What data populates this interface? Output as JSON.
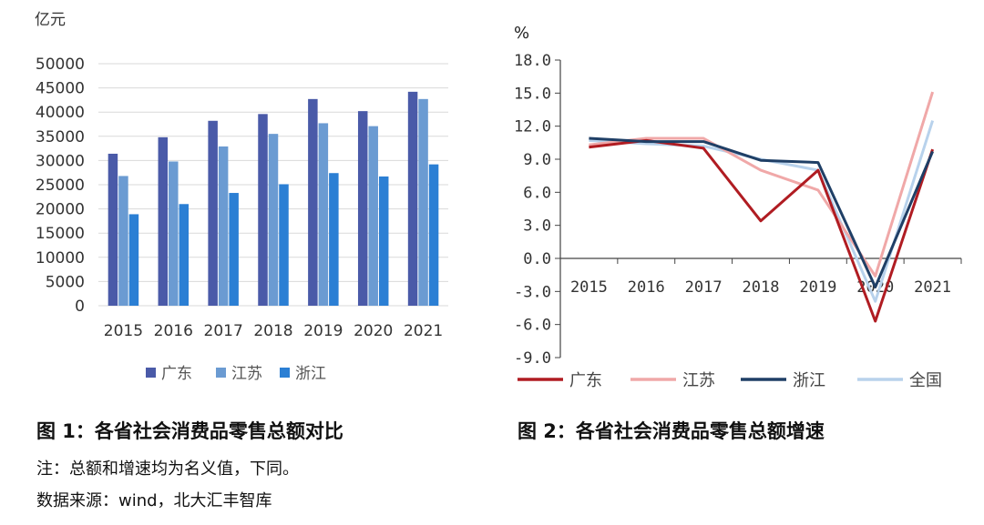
{
  "chart_data": [
    {
      "type": "bar",
      "unit": "亿元",
      "categories": [
        "2015",
        "2016",
        "2017",
        "2018",
        "2019",
        "2020",
        "2021"
      ],
      "series": [
        {
          "name": "广东",
          "color": "#4a5aa8",
          "values": [
            31400,
            34800,
            38200,
            39600,
            42700,
            40200,
            44200
          ]
        },
        {
          "name": "江苏",
          "color": "#6b9bd2",
          "values": [
            26800,
            29800,
            32900,
            35500,
            37700,
            37100,
            42700
          ]
        },
        {
          "name": "浙江",
          "color": "#2b7fd4",
          "values": [
            18900,
            21000,
            23300,
            25100,
            27400,
            26700,
            29200
          ]
        }
      ],
      "yticks": [
        "50000",
        "45000",
        "40000",
        "35000",
        "30000",
        "25000",
        "20000",
        "15000",
        "10000",
        "5000",
        "0"
      ],
      "ylim": [
        0,
        50000
      ],
      "grid": true,
      "legend": "bottom"
    },
    {
      "type": "line",
      "unit": "%",
      "categories": [
        "2015",
        "2016",
        "2017",
        "2018",
        "2019",
        "2020",
        "2021"
      ],
      "series": [
        {
          "name": "广东",
          "color": "#b01c22",
          "values": [
            10.1,
            10.7,
            10.0,
            3.4,
            8.0,
            -5.7,
            9.9
          ]
        },
        {
          "name": "江苏",
          "color": "#f0a8a8",
          "values": [
            10.3,
            10.9,
            10.9,
            8.0,
            6.2,
            -1.6,
            15.1
          ]
        },
        {
          "name": "浙江",
          "color": "#1f3f66",
          "values": [
            10.9,
            10.6,
            10.6,
            8.9,
            8.7,
            -2.6,
            9.7
          ]
        },
        {
          "name": "全国",
          "color": "#b8d2ec",
          "values": [
            10.7,
            10.4,
            10.2,
            9.0,
            8.0,
            -3.9,
            12.5
          ]
        }
      ],
      "yticks": [
        "18.0",
        "15.0",
        "12.0",
        "9.0",
        "6.0",
        "3.0",
        "0.0",
        "-3.0",
        "-6.0",
        "-9.0"
      ],
      "ylim": [
        -9,
        18
      ],
      "grid": false,
      "legend": "bottom"
    }
  ],
  "captions": {
    "fig1": "图 1：各省社会消费品零售总额对比",
    "fig2": "图 2：各省社会消费品零售总额增速",
    "note": "注：总额和增速均为名义值，下同。",
    "source": "数据来源：wind，北大汇丰智库"
  }
}
